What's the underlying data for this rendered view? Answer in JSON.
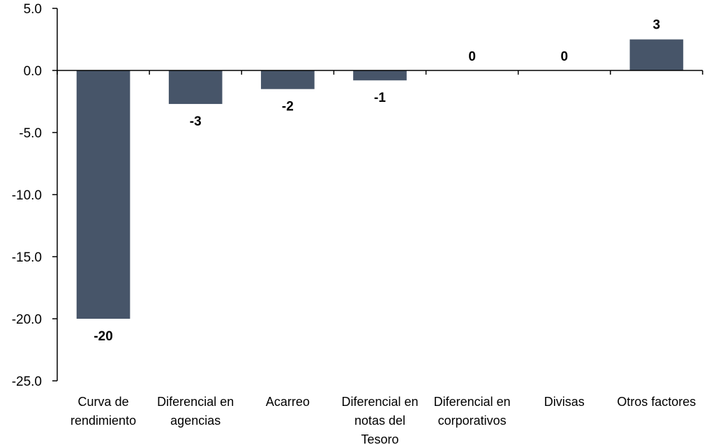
{
  "chart_data": {
    "type": "bar",
    "categories": [
      [
        "Curva de",
        "rendimiento"
      ],
      [
        "Diferencial en",
        "agencias"
      ],
      [
        "Acarreo"
      ],
      [
        "Diferencial en",
        "notas del",
        "Tesoro"
      ],
      [
        "Diferencial en",
        "corporativos"
      ],
      [
        "Divisas"
      ],
      [
        "Otros factores"
      ]
    ],
    "values": [
      -20.0,
      -2.7,
      -1.5,
      -0.8,
      0.0,
      0.0,
      2.5
    ],
    "data_labels": [
      "-20",
      "-3",
      "-2",
      "-1",
      "0",
      "0",
      "3"
    ],
    "ylim": [
      -25.0,
      5.0
    ],
    "yticks": [
      "5.0",
      "0.0",
      "-5.0",
      "-10.0",
      "-15.0",
      "-20.0",
      "-25.0"
    ],
    "ytick_values": [
      5,
      0,
      -5,
      -10,
      -15,
      -20,
      -25
    ],
    "bar_color": "#475569",
    "title": "",
    "xlabel": "",
    "ylabel": "",
    "grid": false,
    "legend": "none"
  }
}
